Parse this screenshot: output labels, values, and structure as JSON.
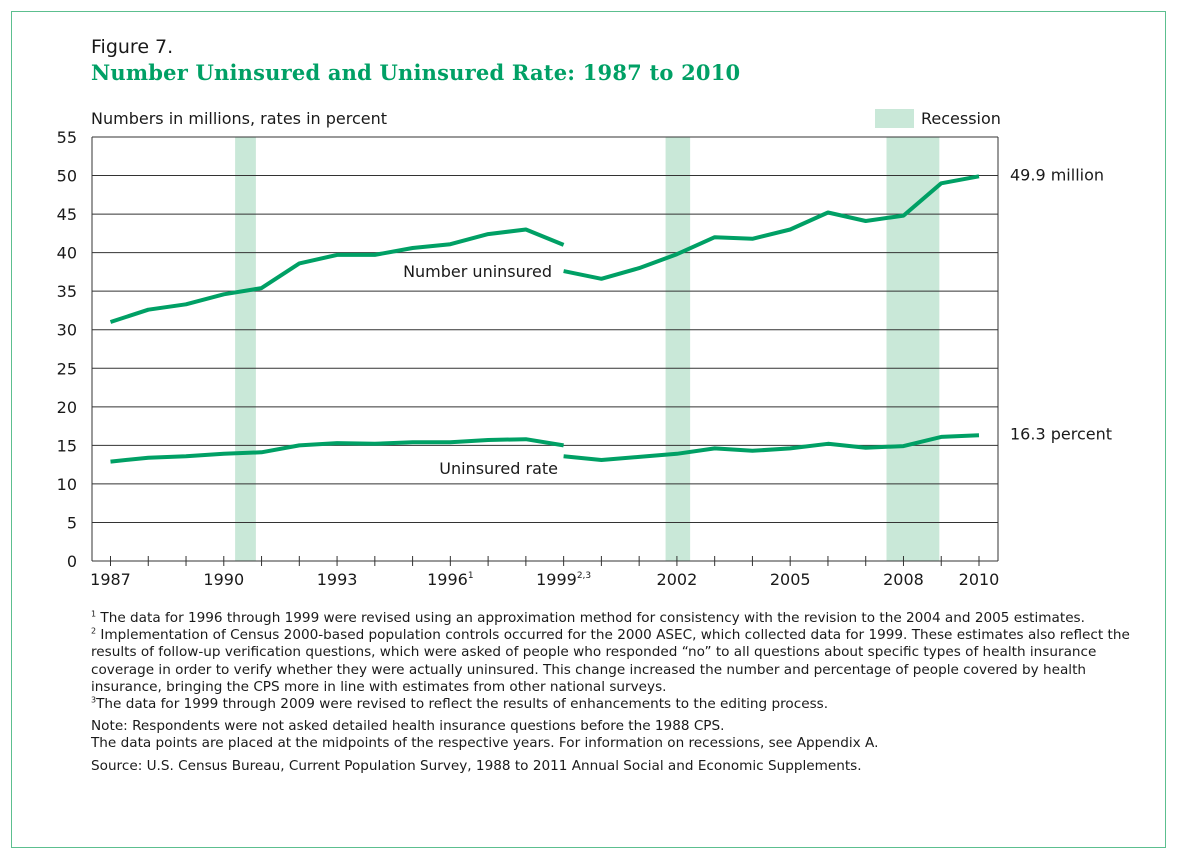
{
  "figure_label": "Figure 7.",
  "title": "Number Uninsured and Uninsured Rate: 1987 to 2010",
  "units_label": "Numbers in millions, rates in percent",
  "legend_label": "Recession",
  "chart_data": {
    "type": "line",
    "ylim": [
      0,
      55
    ],
    "xlim": [
      1987,
      2010
    ],
    "y_ticks": [
      "0",
      "5",
      "10",
      "15",
      "20",
      "25",
      "30",
      "35",
      "40",
      "45",
      "50",
      "55"
    ],
    "x_ticks": [
      {
        "x": 1987,
        "label": "1987",
        "sup": ""
      },
      {
        "x": 1990,
        "label": "1990",
        "sup": ""
      },
      {
        "x": 1993,
        "label": "1993",
        "sup": ""
      },
      {
        "x": 1996,
        "label": "1996",
        "sup": "1"
      },
      {
        "x": 1999,
        "label": "1999",
        "sup": "2,3"
      },
      {
        "x": 2002,
        "label": "2002",
        "sup": ""
      },
      {
        "x": 2005,
        "label": "2005",
        "sup": ""
      },
      {
        "x": 2008,
        "label": "2008",
        "sup": ""
      },
      {
        "x": 2010,
        "label": "2010",
        "sup": ""
      }
    ],
    "recessions": [
      [
        1990.3,
        1990.85
      ],
      [
        2001.7,
        2002.35
      ],
      [
        2007.55,
        2008.95
      ]
    ],
    "series": [
      {
        "name": "Number uninsured",
        "end_label": "49.9 million",
        "segments": [
          [
            [
              1987,
              31.0
            ],
            [
              1988,
              32.6
            ],
            [
              1989,
              33.3
            ],
            [
              1990,
              34.6
            ],
            [
              1991,
              35.4
            ],
            [
              1992,
              38.6
            ],
            [
              1993,
              39.7
            ],
            [
              1994,
              39.7
            ],
            [
              1995,
              40.6
            ],
            [
              1996,
              41.1
            ],
            [
              1997,
              42.4
            ],
            [
              1998,
              43.0
            ],
            [
              1999,
              41.0
            ]
          ],
          [
            [
              1999,
              37.6
            ],
            [
              2000,
              36.6
            ],
            [
              2001,
              38.0
            ],
            [
              2002,
              39.8
            ],
            [
              2003,
              42.0
            ],
            [
              2004,
              41.8
            ],
            [
              2005,
              43.0
            ],
            [
              2006,
              45.2
            ],
            [
              2007,
              44.1
            ],
            [
              2008,
              44.8
            ],
            [
              2009,
              49.0
            ],
            [
              2010,
              49.9
            ]
          ]
        ]
      },
      {
        "name": "Uninsured rate",
        "end_label": "16.3 percent",
        "segments": [
          [
            [
              1987,
              12.9
            ],
            [
              1988,
              13.4
            ],
            [
              1989,
              13.6
            ],
            [
              1990,
              13.9
            ],
            [
              1991,
              14.1
            ],
            [
              1992,
              15.0
            ],
            [
              1993,
              15.3
            ],
            [
              1994,
              15.2
            ],
            [
              1995,
              15.4
            ],
            [
              1996,
              15.4
            ],
            [
              1997,
              15.7
            ],
            [
              1998,
              15.8
            ],
            [
              1999,
              15.0
            ]
          ],
          [
            [
              1999,
              13.6
            ],
            [
              2000,
              13.1
            ],
            [
              2001,
              13.5
            ],
            [
              2002,
              13.9
            ],
            [
              2003,
              14.6
            ],
            [
              2004,
              14.3
            ],
            [
              2005,
              14.6
            ],
            [
              2006,
              15.2
            ],
            [
              2007,
              14.7
            ],
            [
              2008,
              14.9
            ],
            [
              2009,
              16.1
            ],
            [
              2010,
              16.3
            ]
          ]
        ]
      }
    ],
    "color": "#00a065",
    "recession_color": "#c9e8d8"
  },
  "notes": {
    "note1_mark": "1",
    "note1": "The data for 1996 through 1999 were revised using an approximation method for consistency with the revision to the 2004 and 2005 estimates.",
    "note2_mark": "2",
    "note2": "Implementation of Census 2000-based population controls occurred for the 2000 ASEC, which collected data for 1999.  These estimates also reflect the results of follow-up verification questions, which were asked of people who responded “no” to all questions about specific types of health insurance coverage in order to verify whether they were actually uninsured. This change increased the number and percentage of people covered by health insurance, bringing the CPS more in line with estimates from other national surveys.",
    "note3_mark": "3",
    "note3": "The data for 1999 through 2009 were revised to reflect the results of enhancements to the editing process.",
    "note_cps": "Note: Respondents were not asked detailed health insurance questions before the 1988 CPS.",
    "note_midpoints": "The data points are placed at the midpoints of the respective years. For information on recessions, see Appendix A.",
    "source": "Source: U.S. Census Bureau, Current Population Survey, 1988 to 2011 Annual Social and Economic Supplements."
  }
}
